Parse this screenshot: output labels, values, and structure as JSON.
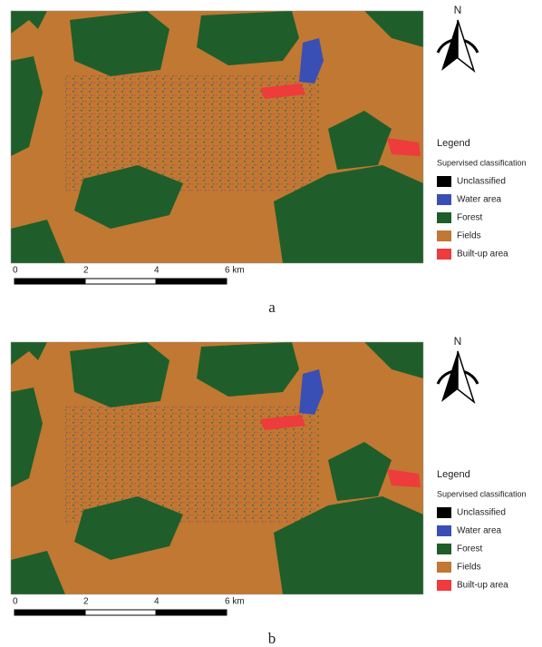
{
  "panels": [
    {
      "caption": "a",
      "north": "N",
      "legend": {
        "title": "Legend",
        "subtitle": "Supervised classification",
        "items": [
          {
            "label": "Unclassified",
            "color": "#000000"
          },
          {
            "label": "Water area",
            "color": "#3a4fb5"
          },
          {
            "label": "Forest",
            "color": "#1f5e2a"
          },
          {
            "label": "Fields",
            "color": "#c07832"
          },
          {
            "label": "Built-up area",
            "color": "#ee3b3b"
          }
        ]
      },
      "scale": [
        "0",
        "2",
        "4",
        "6 km"
      ]
    },
    {
      "caption": "b",
      "north": "N",
      "legend": {
        "title": "Legend",
        "subtitle": "Supervised classification",
        "items": [
          {
            "label": "Unclassified",
            "color": "#000000"
          },
          {
            "label": "Water area",
            "color": "#3a4fb5"
          },
          {
            "label": "Forest",
            "color": "#1f5e2a"
          },
          {
            "label": "Fields",
            "color": "#c07832"
          },
          {
            "label": "Built-up area",
            "color": "#ee3b3b"
          }
        ]
      },
      "scale": [
        "0",
        "2",
        "4",
        "6 km"
      ]
    }
  ]
}
